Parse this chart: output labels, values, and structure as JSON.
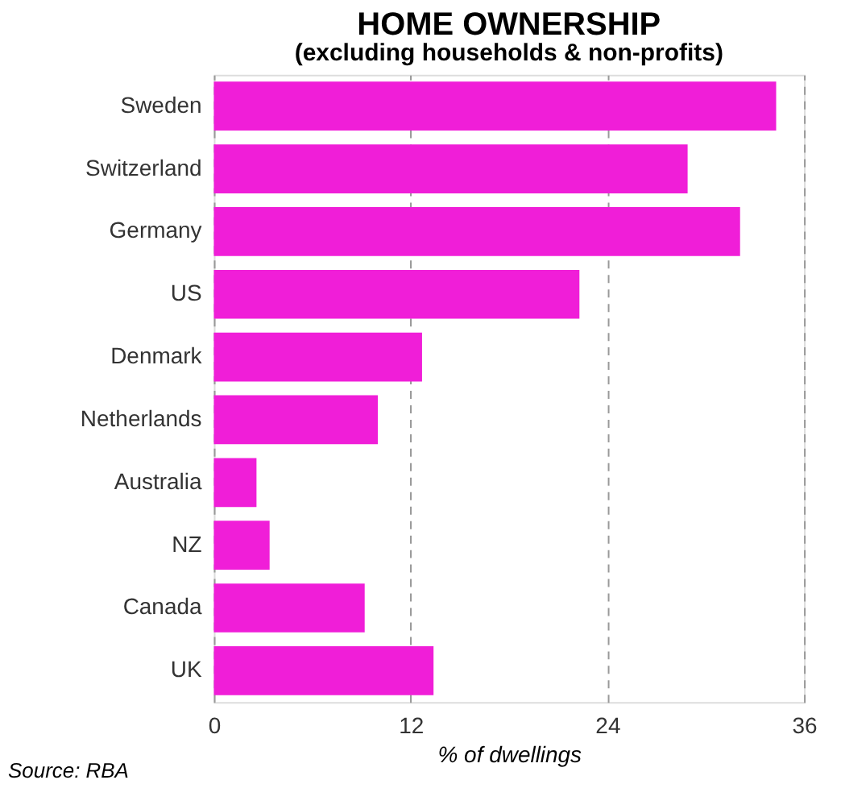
{
  "chart_data": {
    "type": "bar",
    "orientation": "horizontal",
    "title": "HOME OWNERSHIP",
    "subtitle": "(excluding households & non-profits)",
    "xlabel": "% of dwellings",
    "categories": [
      "Sweden",
      "Switzerland",
      "Germany",
      "US",
      "Denmark",
      "Netherlands",
      "Australia",
      "NZ",
      "Canada",
      "UK"
    ],
    "values": [
      34.3,
      28.9,
      32.1,
      22.3,
      12.7,
      10.0,
      2.6,
      3.4,
      9.2,
      13.4
    ],
    "color": "#f01ed8",
    "xlim": [
      0,
      36
    ],
    "xticks": [
      0,
      12,
      24,
      36
    ],
    "grid": "x",
    "annotations": [
      "Source: RBA"
    ]
  }
}
